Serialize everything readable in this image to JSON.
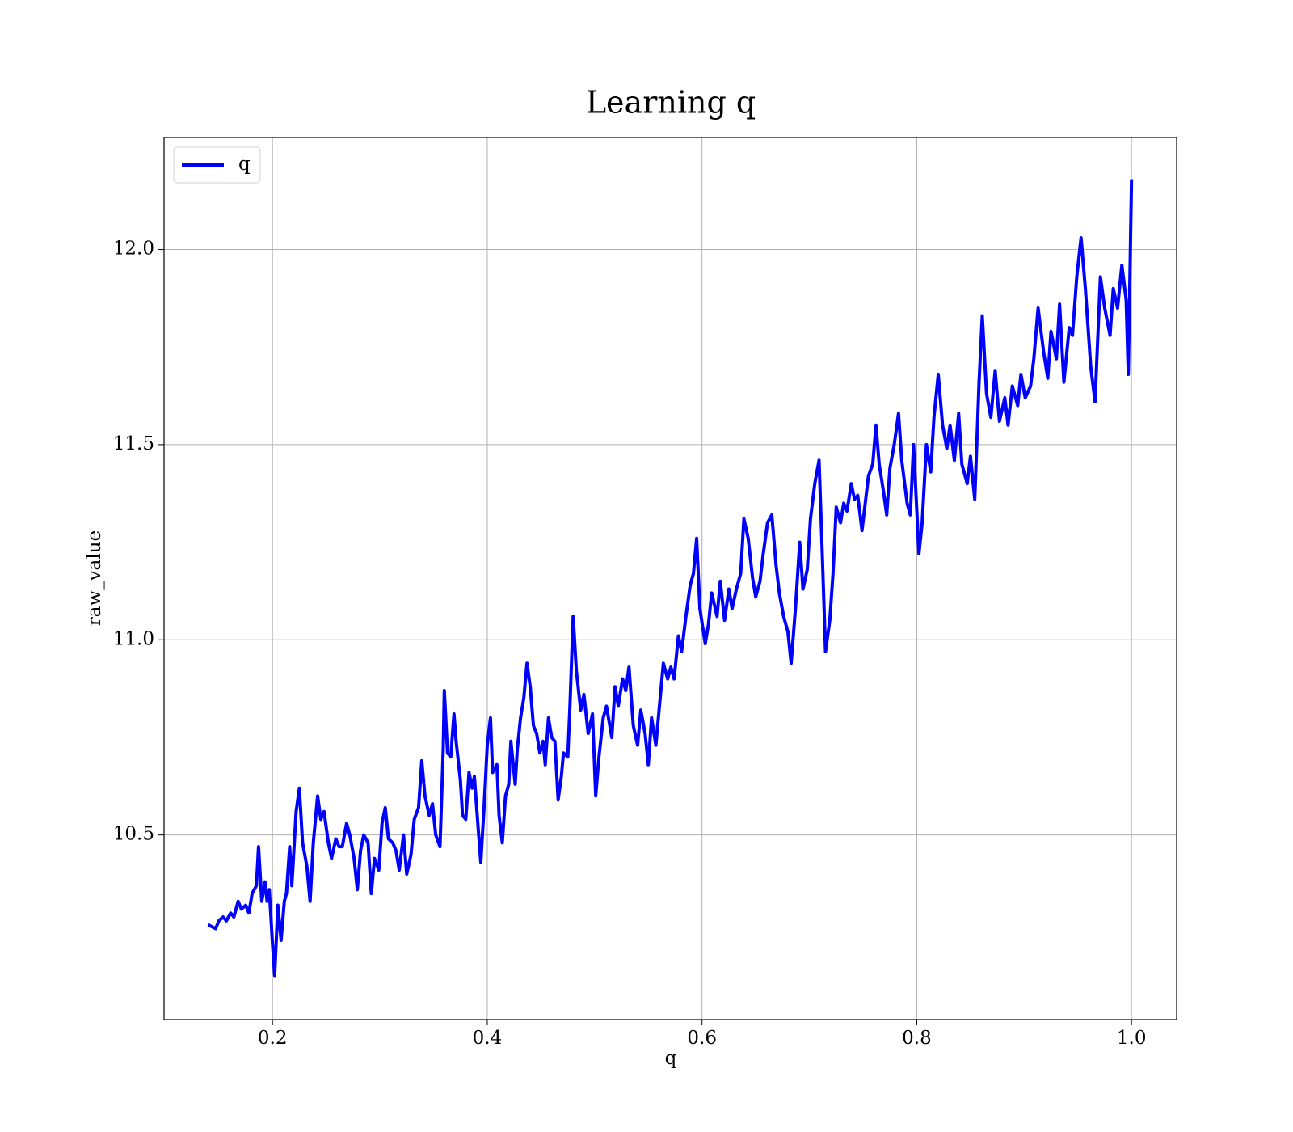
{
  "chart_data": {
    "type": "line",
    "title": "Learning q",
    "xlabel": "q",
    "ylabel": "raw_value",
    "x": [
      0.14,
      0.147,
      0.15,
      0.154,
      0.157,
      0.161,
      0.164,
      0.168,
      0.171,
      0.175,
      0.178,
      0.181,
      0.185,
      0.187,
      0.19,
      0.193,
      0.195,
      0.197,
      0.2,
      0.202,
      0.205,
      0.208,
      0.211,
      0.213,
      0.216,
      0.218,
      0.222,
      0.225,
      0.228,
      0.232,
      0.235,
      0.238,
      0.242,
      0.245,
      0.248,
      0.252,
      0.255,
      0.259,
      0.262,
      0.265,
      0.269,
      0.272,
      0.276,
      0.279,
      0.282,
      0.285,
      0.289,
      0.292,
      0.295,
      0.299,
      0.302,
      0.305,
      0.308,
      0.312,
      0.315,
      0.318,
      0.322,
      0.325,
      0.329,
      0.332,
      0.336,
      0.339,
      0.342,
      0.346,
      0.349,
      0.352,
      0.356,
      0.359,
      0.36,
      0.363,
      0.366,
      0.369,
      0.371,
      0.375,
      0.377,
      0.38,
      0.383,
      0.386,
      0.388,
      0.392,
      0.394,
      0.397,
      0.4,
      0.403,
      0.405,
      0.409,
      0.411,
      0.414,
      0.417,
      0.42,
      0.422,
      0.426,
      0.428,
      0.431,
      0.434,
      0.437,
      0.44,
      0.443,
      0.446,
      0.449,
      0.452,
      0.454,
      0.457,
      0.46,
      0.463,
      0.466,
      0.469,
      0.471,
      0.475,
      0.477,
      0.48,
      0.483,
      0.487,
      0.49,
      0.494,
      0.498,
      0.501,
      0.504,
      0.508,
      0.511,
      0.516,
      0.519,
      0.522,
      0.526,
      0.529,
      0.532,
      0.536,
      0.54,
      0.543,
      0.547,
      0.55,
      0.553,
      0.557,
      0.56,
      0.564,
      0.568,
      0.571,
      0.574,
      0.578,
      0.581,
      0.585,
      0.589,
      0.592,
      0.595,
      0.598,
      0.603,
      0.606,
      0.609,
      0.614,
      0.617,
      0.621,
      0.625,
      0.628,
      0.632,
      0.636,
      0.639,
      0.643,
      0.647,
      0.65,
      0.654,
      0.657,
      0.661,
      0.665,
      0.669,
      0.672,
      0.676,
      0.68,
      0.683,
      0.687,
      0.691,
      0.694,
      0.698,
      0.701,
      0.705,
      0.709,
      0.712,
      0.715,
      0.719,
      0.722,
      0.725,
      0.729,
      0.732,
      0.735,
      0.739,
      0.742,
      0.745,
      0.749,
      0.752,
      0.755,
      0.759,
      0.762,
      0.765,
      0.769,
      0.772,
      0.775,
      0.779,
      0.783,
      0.786,
      0.791,
      0.794,
      0.797,
      0.802,
      0.805,
      0.809,
      0.813,
      0.816,
      0.82,
      0.824,
      0.828,
      0.831,
      0.835,
      0.839,
      0.842,
      0.847,
      0.85,
      0.854,
      0.858,
      0.861,
      0.865,
      0.869,
      0.873,
      0.877,
      0.882,
      0.885,
      0.889,
      0.894,
      0.897,
      0.901,
      0.906,
      0.909,
      0.913,
      0.918,
      0.922,
      0.925,
      0.93,
      0.933,
      0.937,
      0.942,
      0.945,
      0.949,
      0.953,
      0.957,
      0.962,
      0.966,
      0.971,
      0.975,
      0.98,
      0.983,
      0.987,
      0.991,
      0.995,
      0.997,
      1.0
    ],
    "series": [
      {
        "name": "q",
        "color": "#0000ff",
        "values": [
          10.27,
          10.26,
          10.28,
          10.29,
          10.28,
          10.3,
          10.29,
          10.33,
          10.31,
          10.32,
          10.3,
          10.35,
          10.37,
          10.47,
          10.33,
          10.38,
          10.33,
          10.36,
          10.22,
          10.14,
          10.32,
          10.23,
          10.33,
          10.35,
          10.47,
          10.37,
          10.56,
          10.62,
          10.48,
          10.42,
          10.33,
          10.48,
          10.6,
          10.54,
          10.56,
          10.48,
          10.44,
          10.49,
          10.47,
          10.47,
          10.53,
          10.5,
          10.44,
          10.36,
          10.46,
          10.5,
          10.48,
          10.35,
          10.44,
          10.41,
          10.53,
          10.57,
          10.49,
          10.48,
          10.46,
          10.41,
          10.5,
          10.4,
          10.45,
          10.54,
          10.57,
          10.69,
          10.6,
          10.55,
          10.58,
          10.5,
          10.47,
          10.72,
          10.87,
          10.71,
          10.7,
          10.81,
          10.74,
          10.64,
          10.55,
          10.54,
          10.66,
          10.62,
          10.65,
          10.5,
          10.43,
          10.57,
          10.73,
          10.8,
          10.66,
          10.68,
          10.55,
          10.48,
          10.6,
          10.63,
          10.74,
          10.63,
          10.72,
          10.8,
          10.85,
          10.94,
          10.88,
          10.78,
          10.76,
          10.71,
          10.74,
          10.68,
          10.8,
          10.75,
          10.74,
          10.59,
          10.65,
          10.71,
          10.7,
          10.83,
          11.06,
          10.92,
          10.82,
          10.86,
          10.76,
          10.81,
          10.6,
          10.7,
          10.8,
          10.83,
          10.75,
          10.88,
          10.83,
          10.9,
          10.87,
          10.93,
          10.78,
          10.73,
          10.82,
          10.76,
          10.68,
          10.8,
          10.73,
          10.82,
          10.94,
          10.9,
          10.93,
          10.9,
          11.01,
          10.97,
          11.06,
          11.14,
          11.17,
          11.26,
          11.08,
          10.99,
          11.04,
          11.12,
          11.06,
          11.15,
          11.05,
          11.13,
          11.08,
          11.13,
          11.17,
          11.31,
          11.26,
          11.16,
          11.11,
          11.15,
          11.22,
          11.3,
          11.32,
          11.19,
          11.12,
          11.06,
          11.02,
          10.94,
          11.08,
          11.25,
          11.13,
          11.18,
          11.31,
          11.4,
          11.46,
          11.22,
          10.97,
          11.05,
          11.17,
          11.34,
          11.3,
          11.35,
          11.33,
          11.4,
          11.36,
          11.37,
          11.28,
          11.35,
          11.42,
          11.45,
          11.55,
          11.45,
          11.38,
          11.32,
          11.44,
          11.5,
          11.58,
          11.46,
          11.35,
          11.32,
          11.5,
          11.22,
          11.3,
          11.5,
          11.43,
          11.57,
          11.68,
          11.55,
          11.49,
          11.55,
          11.46,
          11.58,
          11.45,
          11.4,
          11.47,
          11.36,
          11.66,
          11.83,
          11.63,
          11.57,
          11.69,
          11.56,
          11.62,
          11.55,
          11.65,
          11.6,
          11.68,
          11.62,
          11.65,
          11.72,
          11.85,
          11.74,
          11.67,
          11.79,
          11.72,
          11.86,
          11.66,
          11.8,
          11.78,
          11.93,
          12.03,
          11.9,
          11.7,
          11.61,
          11.93,
          11.85,
          11.78,
          11.9,
          11.85,
          11.96,
          11.87,
          11.68,
          12.18
        ]
      }
    ],
    "xlim": [
      0.099,
      1.042
    ],
    "ylim": [
      10.027,
      12.287
    ],
    "xticks": [
      0.2,
      0.4,
      0.6,
      0.8,
      {
        "value": 1,
        "label": "1.0"
      }
    ],
    "yticks": [
      10.5,
      {
        "value": 11,
        "label": "11.0"
      },
      11.5,
      {
        "value": 12,
        "label": "12.0"
      }
    ],
    "grid": true,
    "legend": "upper left"
  }
}
